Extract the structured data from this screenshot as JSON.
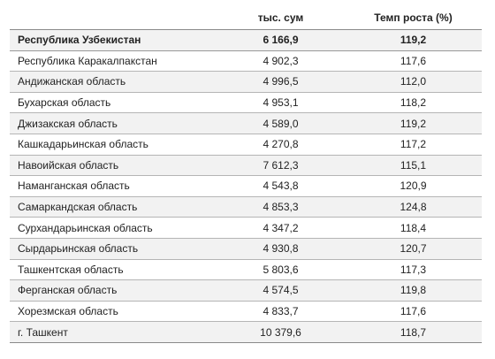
{
  "table": {
    "headers": {
      "name": "",
      "value": "тыс. сум",
      "rate": "Темп роста (%)"
    },
    "rows": [
      {
        "name": "Республика Узбекистан",
        "value": "6 166,9",
        "rate": "119,2",
        "bold": true
      },
      {
        "name": "Республика Каракалпакстан",
        "value": "4 902,3",
        "rate": "117,6"
      },
      {
        "name": "Андижанская область",
        "value": "4 996,5",
        "rate": "112,0"
      },
      {
        "name": "Бухарская область",
        "value": "4 953,1",
        "rate": "118,2"
      },
      {
        "name": "Джизакская область",
        "value": "4 589,0",
        "rate": "119,2"
      },
      {
        "name": "Кашкадарьинская область",
        "value": "4 270,8",
        "rate": "117,2"
      },
      {
        "name": "Навоийская область",
        "value": "7 612,3",
        "rate": "115,1"
      },
      {
        "name": "Наманганская область",
        "value": "4 543,8",
        "rate": "120,9"
      },
      {
        "name": "Самаркандская область",
        "value": "4 853,3",
        "rate": "124,8"
      },
      {
        "name": "Сурхандарьинская область",
        "value": "4 347,2",
        "rate": "118,4"
      },
      {
        "name": "Сырдарьинская область",
        "value": "4 930,8",
        "rate": "120,7"
      },
      {
        "name": "Ташкентская область",
        "value": "5 803,6",
        "rate": "117,3"
      },
      {
        "name": "Ферганская область",
        "value": "4 574,5",
        "rate": "119,8"
      },
      {
        "name": "Хорезмская область",
        "value": "4 833,7",
        "rate": "117,6"
      },
      {
        "name": "г. Ташкент",
        "value": "10 379,6",
        "rate": "118,7"
      }
    ]
  }
}
